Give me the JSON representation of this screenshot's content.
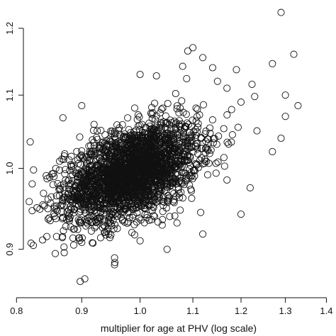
{
  "chart_data": {
    "type": "scatter",
    "title": "",
    "xlabel": "multiplier for age at PHV (log scale)",
    "ylabel": "",
    "x_scale": "log",
    "y_scale": "log",
    "xlim": [
      0.81,
      1.41
    ],
    "ylim": [
      0.845,
      1.245
    ],
    "x_ticks": [
      {
        "value": 0.8,
        "label": "0.8"
      },
      {
        "value": 0.9,
        "label": "0.9"
      },
      {
        "value": 1.0,
        "label": "1.0"
      },
      {
        "value": 1.1,
        "label": "1.1"
      },
      {
        "value": 1.2,
        "label": "1.2"
      },
      {
        "value": 1.3,
        "label": "1.3"
      },
      {
        "value": 1.4,
        "label": "1.4"
      }
    ],
    "y_ticks": [
      {
        "value": 0.9,
        "label": "0.9"
      },
      {
        "value": 1.0,
        "label": "1.0"
      },
      {
        "value": 1.1,
        "label": "1.1"
      },
      {
        "value": 1.2,
        "label": "1.2"
      }
    ],
    "marker": "open-circle",
    "point_color": "#111111",
    "dense_cluster": {
      "center": [
        0.985,
        0.995
      ],
      "sd_log": [
        0.06,
        0.032
      ],
      "correlation": 0.45,
      "count": 2600
    },
    "points": [
      [
        1.29,
        1.225
      ],
      [
        1.32,
        1.16
      ],
      [
        1.27,
        1.146
      ],
      [
        1.3,
        1.1
      ],
      [
        1.33,
        1.085
      ],
      [
        1.3,
        1.07
      ],
      [
        1.29,
        1.04
      ],
      [
        1.27,
        1.022
      ],
      [
        1.235,
        1.05
      ],
      [
        1.22,
        0.975
      ],
      [
        1.2,
        0.942
      ],
      [
        1.09,
        1.165
      ],
      [
        1.1,
        1.17
      ],
      [
        1.12,
        1.155
      ],
      [
        1.08,
        1.142
      ],
      [
        1.14,
        1.14
      ],
      [
        1.19,
        1.137
      ],
      [
        1.0,
        1.13
      ],
      [
        1.03,
        1.128
      ],
      [
        1.15,
        1.12
      ],
      [
        1.17,
        1.11
      ],
      [
        1.23,
        1.098
      ],
      [
        1.2,
        1.09
      ],
      [
        0.9,
        1.085
      ],
      [
        0.87,
        1.068
      ],
      [
        0.82,
        1.035
      ],
      [
        0.825,
        0.998
      ],
      [
        0.823,
        0.98
      ],
      [
        0.83,
        0.95
      ],
      [
        0.84,
        0.968
      ],
      [
        0.845,
        0.915
      ],
      [
        0.86,
        0.915
      ],
      [
        0.9,
        0.908
      ],
      [
        0.858,
        0.895
      ],
      [
        0.872,
        0.896
      ],
      [
        0.955,
        0.89
      ],
      [
        0.955,
        0.882
      ],
      [
        0.905,
        0.866
      ],
      [
        1.05,
        0.9
      ],
      [
        1.0,
        0.91
      ],
      [
        1.12,
        0.918
      ],
      [
        1.17,
        0.985
      ]
    ]
  }
}
